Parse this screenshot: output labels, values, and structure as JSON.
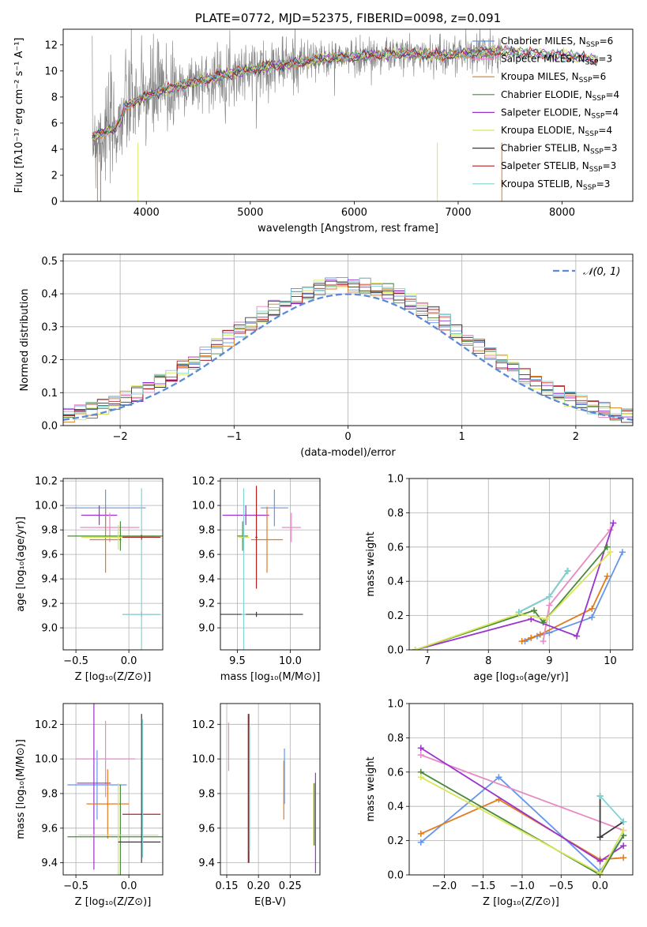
{
  "colors": {
    "Chabrier MILES": "#6495ed",
    "Salpeter MILES": "#ff8c00",
    "Kroupa MILES": "#e07b20",
    "Chabrier ELODIE": "#4a8a3c",
    "Salpeter ELODIE": "#9a32cd",
    "Kroupa ELODIE": "#d9e65a",
    "Chabrier STELIB": "#3a3a3a",
    "Salpeter STELIB": "#b22222",
    "Kroupa STELIB": "#7fd4d4",
    "pink": "#e78ac3",
    "greyspec": "#808080",
    "lime": "#b5e551",
    "darkgreen": "#5a7d4a"
  },
  "chart_data": [
    {
      "id": "spectrum",
      "type": "line",
      "title": "PLATE=0772, MJD=52375, FIBERID=0098, z=0.091",
      "xlabel": "wavelength [Angstrom, rest frame]",
      "ylabel": "Flux [fλ10⁻¹⁷ erg cm⁻² s⁻¹ A⁻¹]",
      "xlim": [
        3200,
        8680
      ],
      "ylim": [
        0,
        13.2
      ],
      "xticks": [
        4000,
        5000,
        6000,
        7000,
        8000
      ],
      "yticks": [
        0,
        2,
        4,
        6,
        8,
        10,
        12
      ],
      "legend": [
        {
          "label": "Chabrier MILES, N",
          "sub": "SSP",
          "suffix": "=6",
          "color": "#6495ed"
        },
        {
          "label": "Salpeter MILES, N",
          "sub": "SSP",
          "suffix": "=3",
          "color": "#e78ac3"
        },
        {
          "label": "Kroupa MILES, N",
          "sub": "SSP",
          "suffix": "=6",
          "color": "#e07b20"
        },
        {
          "label": "Chabrier ELODIE, N",
          "sub": "SSP",
          "suffix": "=4",
          "color": "#4a8a3c"
        },
        {
          "label": "Salpeter ELODIE, N",
          "sub": "SSP",
          "suffix": "=4",
          "color": "#9a32cd"
        },
        {
          "label": "Kroupa ELODIE, N",
          "sub": "SSP",
          "suffix": "=4",
          "color": "#d9e65a"
        },
        {
          "label": "Chabrier STELIB, N",
          "sub": "SSP",
          "suffix": "=3",
          "color": "#3a3a3a"
        },
        {
          "label": "Salpeter STELIB, N",
          "sub": "SSP",
          "suffix": "=3",
          "color": "#b22222"
        },
        {
          "label": "Kroupa STELIB, N",
          "sub": "SSP",
          "suffix": "=3",
          "color": "#7fd4d4"
        }
      ],
      "continuum": [
        [
          3500,
          5.0
        ],
        [
          3600,
          5.3
        ],
        [
          3700,
          5.6
        ],
        [
          3750,
          6.2
        ],
        [
          3800,
          7.3
        ],
        [
          3900,
          7.7
        ],
        [
          4000,
          8.0
        ],
        [
          4100,
          8.4
        ],
        [
          4200,
          8.6
        ],
        [
          4400,
          9.0
        ],
        [
          4600,
          9.4
        ],
        [
          4800,
          9.8
        ],
        [
          5000,
          10.1
        ],
        [
          5200,
          10.4
        ],
        [
          5400,
          10.6
        ],
        [
          5600,
          10.8
        ],
        [
          5800,
          11.0
        ],
        [
          6000,
          11.1
        ],
        [
          6200,
          11.2
        ],
        [
          6400,
          11.3
        ],
        [
          6600,
          11.3
        ],
        [
          6800,
          11.2
        ],
        [
          7000,
          11.3
        ],
        [
          7200,
          11.4
        ],
        [
          7400,
          11.5
        ],
        [
          7600,
          11.4
        ],
        [
          7800,
          11.3
        ],
        [
          8000,
          11.2
        ],
        [
          8200,
          11.0
        ],
        [
          8300,
          10.9
        ]
      ]
    },
    {
      "id": "residuals",
      "type": "step",
      "xlabel": "(data-model)/error",
      "ylabel": "Normed distribution",
      "xlim": [
        -2.5,
        2.5
      ],
      "ylim": [
        0,
        0.52
      ],
      "xticks": [
        -2,
        -1,
        0,
        1,
        2
      ],
      "yticks": [
        0.0,
        0.1,
        0.2,
        0.3,
        0.4,
        0.5
      ],
      "legend": "𝒩(0, 1)"
    },
    {
      "id": "age_vs_Z",
      "type": "errorbar",
      "xlabel": "Z [log₁₀(Z/Z⊙)]",
      "ylabel": "age  [log₁₀(age/yr)]",
      "xlim": [
        -0.62,
        0.32
      ],
      "ylim": [
        8.82,
        10.22
      ],
      "xticks": [
        -0.5,
        0.0
      ],
      "yticks": [
        9.0,
        9.2,
        9.4,
        9.6,
        9.8,
        10.0,
        10.2
      ],
      "points": [
        {
          "x": -0.22,
          "y": 9.98,
          "xe": 0.38,
          "ye": 0.15,
          "c": "#6495ed"
        },
        {
          "x": -0.28,
          "y": 9.92,
          "xe": 0.17,
          "ye": 0.08,
          "c": "#9a32cd"
        },
        {
          "x": -0.18,
          "y": 9.82,
          "xe": 0.28,
          "ye": 0.12,
          "c": "#e78ac3"
        },
        {
          "x": -0.22,
          "y": 9.72,
          "xe": 0.15,
          "ye": 0.27,
          "c": "#e07b20"
        },
        {
          "x": -0.08,
          "y": 9.75,
          "xe": 0.5,
          "ye": 0.12,
          "c": "#4a8a3c"
        },
        {
          "x": -0.1,
          "y": 9.74,
          "xe": 0.35,
          "ye": 0.1,
          "c": "#d9e65a"
        },
        {
          "x": 0.12,
          "y": 9.11,
          "xe": 0.18,
          "ye": 0.02,
          "c": "#3a3a3a"
        },
        {
          "x": 0.12,
          "y": 9.11,
          "xe": 0.18,
          "ye": 1.03,
          "c": "#7fd4d4"
        },
        {
          "x": 0.12,
          "y": 9.74,
          "xe": 0.18,
          "ye": 0.02,
          "c": "#b22222"
        }
      ]
    },
    {
      "id": "age_vs_mass",
      "type": "errorbar",
      "xlabel": "mass [log₁₀(M/M⊙)]",
      "ylabel": "",
      "xlim": [
        9.34,
        10.28
      ],
      "ylim": [
        8.82,
        10.22
      ],
      "xticks": [
        9.5,
        10.0
      ],
      "yticks": [
        9.0,
        9.2,
        9.4,
        9.6,
        9.8,
        10.0,
        10.2
      ],
      "points": [
        {
          "x": 9.85,
          "y": 9.98,
          "xe": 0.13,
          "ye": 0.15,
          "c": "#6495ed"
        },
        {
          "x": 9.58,
          "y": 9.92,
          "xe": 0.22,
          "ye": 0.08,
          "c": "#9a32cd"
        },
        {
          "x": 10.01,
          "y": 9.82,
          "xe": 0.09,
          "ye": 0.12,
          "c": "#e78ac3"
        },
        {
          "x": 9.78,
          "y": 9.72,
          "xe": 0.15,
          "ye": 0.27,
          "c": "#e07b20"
        },
        {
          "x": 9.55,
          "y": 9.75,
          "xe": 0.05,
          "ye": 0.12,
          "c": "#4a8a3c"
        },
        {
          "x": 9.56,
          "y": 9.74,
          "xe": 0.05,
          "ye": 0.1,
          "c": "#d9e65a"
        },
        {
          "x": 9.68,
          "y": 9.11,
          "xe": 0.44,
          "ye": 0.02,
          "c": "#3a3a3a"
        },
        {
          "x": 9.56,
          "y": 9.11,
          "xe": 0.02,
          "ye": 1.03,
          "c": "#7fd4d4"
        },
        {
          "x": 9.68,
          "y": 9.74,
          "xe": 0.01,
          "ye": 0.42,
          "c": "#b22222"
        }
      ]
    },
    {
      "id": "weight_vs_age",
      "type": "line",
      "xlabel": "age  [log₁₀(age/yr)]",
      "ylabel": "mass weight",
      "xlim": [
        6.7,
        10.37
      ],
      "ylim": [
        0,
        1.0
      ],
      "xticks": [
        7,
        8,
        9,
        10
      ],
      "yticks": [
        0.0,
        0.2,
        0.4,
        0.6,
        0.8,
        1.0
      ],
      "series": [
        {
          "c": "#6495ed",
          "pts": [
            [
              8.6,
              0.05
            ],
            [
              8.8,
              0.08
            ],
            [
              9.0,
              0.1
            ],
            [
              9.7,
              0.19
            ],
            [
              10.2,
              0.57
            ]
          ]
        },
        {
          "c": "#e07b20",
          "pts": [
            [
              8.55,
              0.05
            ],
            [
              8.7,
              0.07
            ],
            [
              8.85,
              0.09
            ],
            [
              9.7,
              0.24
            ],
            [
              9.95,
              0.43
            ]
          ]
        },
        {
          "c": "#e78ac3",
          "pts": [
            [
              8.9,
              0.05
            ],
            [
              9.0,
              0.26
            ],
            [
              10.0,
              0.7
            ]
          ]
        },
        {
          "c": "#9a32cd",
          "pts": [
            [
              6.8,
              0.0
            ],
            [
              8.7,
              0.18
            ],
            [
              9.45,
              0.08
            ],
            [
              10.05,
              0.74
            ]
          ]
        },
        {
          "c": "#4a8a3c",
          "pts": [
            [
              6.8,
              0.0
            ],
            [
              8.75,
              0.23
            ],
            [
              8.9,
              0.16
            ],
            [
              9.95,
              0.6
            ]
          ]
        },
        {
          "c": "#d9e65a",
          "pts": [
            [
              6.8,
              0.0
            ],
            [
              8.5,
              0.21
            ],
            [
              8.95,
              0.18
            ],
            [
              10.0,
              0.57
            ]
          ]
        },
        {
          "c": "#3a3a3a",
          "pts": [
            [
              8.5,
              0.22
            ],
            [
              9.0,
              0.31
            ],
            [
              9.3,
              0.46
            ]
          ]
        },
        {
          "c": "#7fd4d4",
          "pts": [
            [
              8.5,
              0.22
            ],
            [
              9.0,
              0.31
            ],
            [
              9.3,
              0.46
            ]
          ]
        }
      ]
    },
    {
      "id": "mass_vs_Z",
      "type": "errorbar",
      "xlabel": "Z [log₁₀(Z/Z⊙)]",
      "ylabel": "mass [log₁₀(M/M⊙)]",
      "xlim": [
        -0.62,
        0.32
      ],
      "ylim": [
        9.33,
        10.32
      ],
      "xticks": [
        -0.5,
        0.0
      ],
      "yticks": [
        9.4,
        9.6,
        9.8,
        10.0,
        10.2
      ],
      "points": [
        {
          "x": -0.3,
          "y": 9.85,
          "xe": 0.28,
          "ye": 0.2,
          "c": "#6495ed"
        },
        {
          "x": -0.22,
          "y": 10.0,
          "xe": 0.28,
          "ye": 0.22,
          "c": "#e78ac3"
        },
        {
          "x": -0.33,
          "y": 9.86,
          "xe": 0.16,
          "ye": 0.5,
          "c": "#9a32cd"
        },
        {
          "x": -0.2,
          "y": 9.74,
          "xe": 0.2,
          "ye": 0.2,
          "c": "#e07b20"
        },
        {
          "x": -0.08,
          "y": 9.55,
          "xe": 0.5,
          "ye": 0.3,
          "c": "#4a8a3c"
        },
        {
          "x": -0.1,
          "y": 9.56,
          "xe": 0.38,
          "ye": 0.3,
          "c": "#d9e65a"
        },
        {
          "x": 0.1,
          "y": 9.52,
          "xe": 0.2,
          "ye": 0.0,
          "c": "#3a3a3a"
        },
        {
          "x": 0.12,
          "y": 9.68,
          "xe": 0.18,
          "ye": 0.0,
          "c": "#b22222"
        },
        {
          "x": 0.12,
          "y": 9.83,
          "xe": 0.0,
          "ye": 0.43,
          "c": "#3a3a3a"
        },
        {
          "x": 0.13,
          "y": 9.83,
          "xe": 0.0,
          "ye": 0.4,
          "c": "#7fd4d4"
        }
      ]
    },
    {
      "id": "mass_vs_ebv",
      "type": "errorbar",
      "xlabel": "E(B-V)",
      "ylabel": "",
      "xlim": [
        0.14,
        0.297
      ],
      "ylim": [
        9.33,
        10.32
      ],
      "xticks": [
        0.15,
        0.2,
        0.25
      ],
      "yticks": [
        9.4,
        9.6,
        9.8,
        10.0,
        10.2
      ],
      "points": [
        {
          "x": 0.153,
          "y": 10.07,
          "xe": 0,
          "ye": 0.14,
          "c": "#e78ac3"
        },
        {
          "x": 0.184,
          "y": 9.83,
          "xe": 0,
          "ye": 0.43,
          "c": "#3a3a3a"
        },
        {
          "x": 0.185,
          "y": 9.83,
          "xe": 0,
          "ye": 0.43,
          "c": "#b22222"
        },
        {
          "x": 0.186,
          "y": 9.83,
          "xe": 0,
          "ye": 0.36,
          "c": "#7fd4d4"
        },
        {
          "x": 0.24,
          "y": 9.82,
          "xe": 0,
          "ye": 0.17,
          "c": "#e07b20"
        },
        {
          "x": 0.241,
          "y": 9.9,
          "xe": 0,
          "ye": 0.16,
          "c": "#6495ed"
        },
        {
          "x": 0.287,
          "y": 9.68,
          "xe": 0,
          "ye": 0.18,
          "c": "#d9e65a"
        },
        {
          "x": 0.288,
          "y": 9.68,
          "xe": 0,
          "ye": 0.18,
          "c": "#4a8a3c"
        },
        {
          "x": 0.29,
          "y": 9.63,
          "xe": 0,
          "ye": 0.29,
          "c": "#9a32cd"
        }
      ]
    },
    {
      "id": "weight_vs_Z",
      "type": "line",
      "xlabel": "Z [log₁₀(Z/Z⊙)]",
      "ylabel": "mass weight",
      "xlim": [
        -2.45,
        0.42
      ],
      "ylim": [
        0,
        1.0
      ],
      "xticks": [
        -2.0,
        -1.5,
        -1.0,
        -0.5,
        0.0
      ],
      "yticks": [
        0.0,
        0.2,
        0.4,
        0.6,
        0.8,
        1.0
      ],
      "series": [
        {
          "c": "#6495ed",
          "pts": [
            [
              -2.3,
              0.19
            ],
            [
              -1.3,
              0.57
            ],
            [
              0.0,
              0.02
            ],
            [
              0.3,
              0.23
            ]
          ]
        },
        {
          "c": "#e07b20",
          "pts": [
            [
              -2.3,
              0.24
            ],
            [
              -1.3,
              0.44
            ],
            [
              0.0,
              0.09
            ],
            [
              0.3,
              0.1
            ]
          ]
        },
        {
          "c": "#e78ac3",
          "pts": [
            [
              -2.3,
              0.7
            ],
            [
              0.3,
              0.26
            ]
          ]
        },
        {
          "c": "#9a32cd",
          "pts": [
            [
              -2.3,
              0.74
            ],
            [
              0.0,
              0.08
            ],
            [
              0.3,
              0.17
            ]
          ]
        },
        {
          "c": "#4a8a3c",
          "pts": [
            [
              -2.3,
              0.6
            ],
            [
              0.0,
              0.0
            ],
            [
              0.3,
              0.23
            ]
          ]
        },
        {
          "c": "#d9e65a",
          "pts": [
            [
              -2.3,
              0.57
            ],
            [
              0.0,
              0.01
            ],
            [
              0.3,
              0.26
            ]
          ]
        },
        {
          "c": "#3a3a3a",
          "pts": [
            [
              0.0,
              0.46
            ],
            [
              0.0,
              0.22
            ],
            [
              0.3,
              0.31
            ]
          ]
        },
        {
          "c": "#7fd4d4",
          "pts": [
            [
              0.0,
              0.46
            ],
            [
              0.3,
              0.31
            ]
          ]
        }
      ]
    }
  ]
}
